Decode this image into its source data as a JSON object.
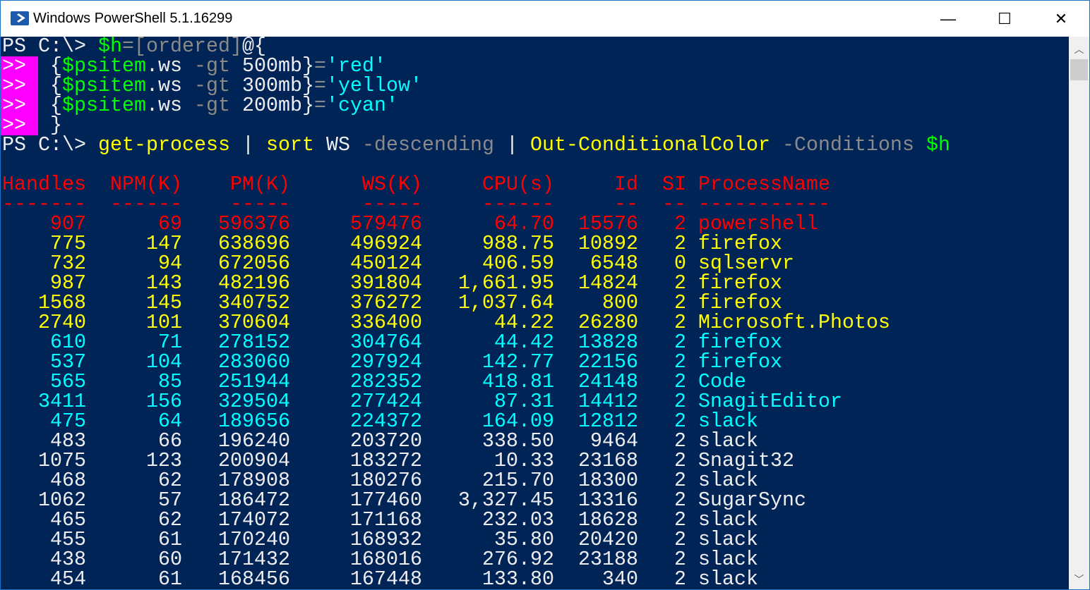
{
  "window": {
    "title": "Windows PowerShell 5.1.16299",
    "minimize": "—",
    "maximize": "☐",
    "close": "✕"
  },
  "colors": {
    "background": "#012456",
    "red": "#ff0000",
    "yellow": "#ffff00",
    "cyan": "#00ffff",
    "default": "#eeedf0",
    "continuation": "#ff00ff"
  },
  "prompt": "PS C:\\> ",
  "continuation": ">>",
  "commands": {
    "line1": [
      {
        "t": "$h",
        "c": "g"
      },
      {
        "t": "=",
        "c": "gr"
      },
      {
        "t": "[ordered]",
        "c": "gr"
      },
      {
        "t": "@{",
        "c": "w"
      }
    ],
    "cont1": [
      {
        "t": " {",
        "c": "w"
      },
      {
        "t": "$psitem",
        "c": "g"
      },
      {
        "t": ".ws ",
        "c": "w"
      },
      {
        "t": "-gt ",
        "c": "gr"
      },
      {
        "t": "500mb",
        "c": "w"
      },
      {
        "t": "}",
        "c": "w"
      },
      {
        "t": "=",
        "c": "gr"
      },
      {
        "t": "'red'",
        "c": "c"
      }
    ],
    "cont2": [
      {
        "t": " {",
        "c": "w"
      },
      {
        "t": "$psitem",
        "c": "g"
      },
      {
        "t": ".ws ",
        "c": "w"
      },
      {
        "t": "-gt ",
        "c": "gr"
      },
      {
        "t": "300mb",
        "c": "w"
      },
      {
        "t": "}",
        "c": "w"
      },
      {
        "t": "=",
        "c": "gr"
      },
      {
        "t": "'yellow'",
        "c": "c"
      }
    ],
    "cont3": [
      {
        "t": " {",
        "c": "w"
      },
      {
        "t": "$psitem",
        "c": "g"
      },
      {
        "t": ".ws ",
        "c": "w"
      },
      {
        "t": "-gt ",
        "c": "gr"
      },
      {
        "t": "200mb",
        "c": "w"
      },
      {
        "t": "}",
        "c": "w"
      },
      {
        "t": "=",
        "c": "gr"
      },
      {
        "t": "'cyan'",
        "c": "c"
      }
    ],
    "cont4": [
      {
        "t": " }",
        "c": "w"
      }
    ],
    "line2": [
      {
        "t": "get-process",
        "c": "y"
      },
      {
        "t": " | ",
        "c": "w"
      },
      {
        "t": "sort",
        "c": "y"
      },
      {
        "t": " WS ",
        "c": "w"
      },
      {
        "t": "-descending",
        "c": "gr"
      },
      {
        "t": " | ",
        "c": "w"
      },
      {
        "t": "Out-ConditionalColor",
        "c": "y"
      },
      {
        "t": " -Conditions ",
        "c": "gr"
      },
      {
        "t": "$h",
        "c": "g"
      }
    ]
  },
  "table": {
    "headers": [
      "Handles",
      "NPM(K)",
      "PM(K)",
      "WS(K)",
      "CPU(s)",
      "Id",
      "SI",
      "ProcessName"
    ],
    "rows": [
      {
        "c": "r",
        "v": [
          "907",
          "69",
          "596376",
          "579476",
          "64.70",
          "15576",
          "2",
          "powershell"
        ]
      },
      {
        "c": "y",
        "v": [
          "775",
          "147",
          "638696",
          "496924",
          "988.75",
          "10892",
          "2",
          "firefox"
        ]
      },
      {
        "c": "y",
        "v": [
          "732",
          "94",
          "672056",
          "450124",
          "406.59",
          "6548",
          "0",
          "sqlservr"
        ]
      },
      {
        "c": "y",
        "v": [
          "987",
          "143",
          "482196",
          "391804",
          "1,661.95",
          "14824",
          "2",
          "firefox"
        ]
      },
      {
        "c": "y",
        "v": [
          "1568",
          "145",
          "340752",
          "376272",
          "1,037.64",
          "800",
          "2",
          "firefox"
        ]
      },
      {
        "c": "y",
        "v": [
          "2740",
          "101",
          "370604",
          "336400",
          "44.22",
          "26280",
          "2",
          "Microsoft.Photos"
        ]
      },
      {
        "c": "c",
        "v": [
          "610",
          "71",
          "278152",
          "304764",
          "44.42",
          "13828",
          "2",
          "firefox"
        ]
      },
      {
        "c": "c",
        "v": [
          "537",
          "104",
          "283060",
          "297924",
          "142.77",
          "22156",
          "2",
          "firefox"
        ]
      },
      {
        "c": "c",
        "v": [
          "565",
          "85",
          "251944",
          "282352",
          "418.81",
          "24148",
          "2",
          "Code"
        ]
      },
      {
        "c": "c",
        "v": [
          "3411",
          "156",
          "329504",
          "277424",
          "87.31",
          "14412",
          "2",
          "SnagitEditor"
        ]
      },
      {
        "c": "c",
        "v": [
          "475",
          "64",
          "189656",
          "224372",
          "164.09",
          "12812",
          "2",
          "slack"
        ]
      },
      {
        "c": "w",
        "v": [
          "483",
          "66",
          "196240",
          "203720",
          "338.50",
          "9464",
          "2",
          "slack"
        ]
      },
      {
        "c": "w",
        "v": [
          "1075",
          "123",
          "200904",
          "183272",
          "10.33",
          "23168",
          "2",
          "Snagit32"
        ]
      },
      {
        "c": "w",
        "v": [
          "468",
          "62",
          "178908",
          "180276",
          "215.70",
          "18300",
          "2",
          "slack"
        ]
      },
      {
        "c": "w",
        "v": [
          "1062",
          "57",
          "186472",
          "177460",
          "3,327.45",
          "13316",
          "2",
          "SugarSync"
        ]
      },
      {
        "c": "w",
        "v": [
          "465",
          "62",
          "174072",
          "171168",
          "232.03",
          "18628",
          "2",
          "slack"
        ]
      },
      {
        "c": "w",
        "v": [
          "455",
          "61",
          "170240",
          "168932",
          "35.80",
          "20420",
          "2",
          "slack"
        ]
      },
      {
        "c": "w",
        "v": [
          "438",
          "60",
          "171432",
          "168016",
          "276.92",
          "23188",
          "2",
          "slack"
        ]
      },
      {
        "c": "w",
        "v": [
          "454",
          "61",
          "168456",
          "167448",
          "133.80",
          "340",
          "2",
          "slack"
        ]
      }
    ]
  }
}
